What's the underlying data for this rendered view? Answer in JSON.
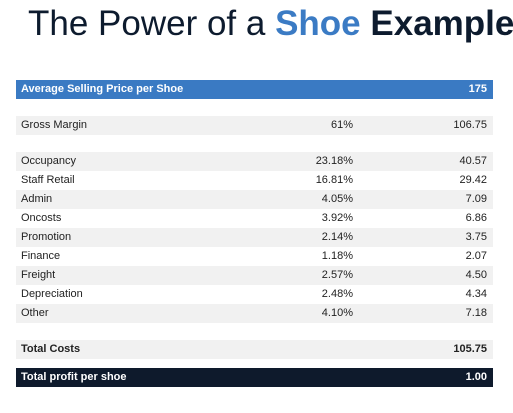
{
  "title": {
    "part1": "The Power of a ",
    "accent": "Shoe",
    "part2": " Example"
  },
  "header": {
    "label": "Average Selling Price per Shoe",
    "value": "175"
  },
  "gross_margin": {
    "label": "Gross Margin",
    "pct": "61%",
    "value": "106.75"
  },
  "costs": [
    {
      "label": "Occupancy",
      "pct": "23.18%",
      "value": "40.57"
    },
    {
      "label": "Staff Retail",
      "pct": "16.81%",
      "value": "29.42"
    },
    {
      "label": "Admin",
      "pct": "4.05%",
      "value": "7.09"
    },
    {
      "label": "Oncosts",
      "pct": "3.92%",
      "value": "6.86"
    },
    {
      "label": "Promotion",
      "pct": "2.14%",
      "value": "3.75"
    },
    {
      "label": "Finance",
      "pct": "1.18%",
      "value": "2.07"
    },
    {
      "label": "Freight",
      "pct": "2.57%",
      "value": "4.50"
    },
    {
      "label": "Depreciation",
      "pct": "2.48%",
      "value": "4.34"
    },
    {
      "label": "Other",
      "pct": "4.10%",
      "value": "7.18"
    }
  ],
  "total_costs": {
    "label": "Total Costs",
    "value": "105.75"
  },
  "profit": {
    "label": "Total profit per shoe",
    "value": "1.00"
  },
  "colors": {
    "accent": "#3b7bc4",
    "navy": "#0e1a2c",
    "header_blue": "#3a7ac3",
    "row_shade": "#f1f1f1"
  }
}
